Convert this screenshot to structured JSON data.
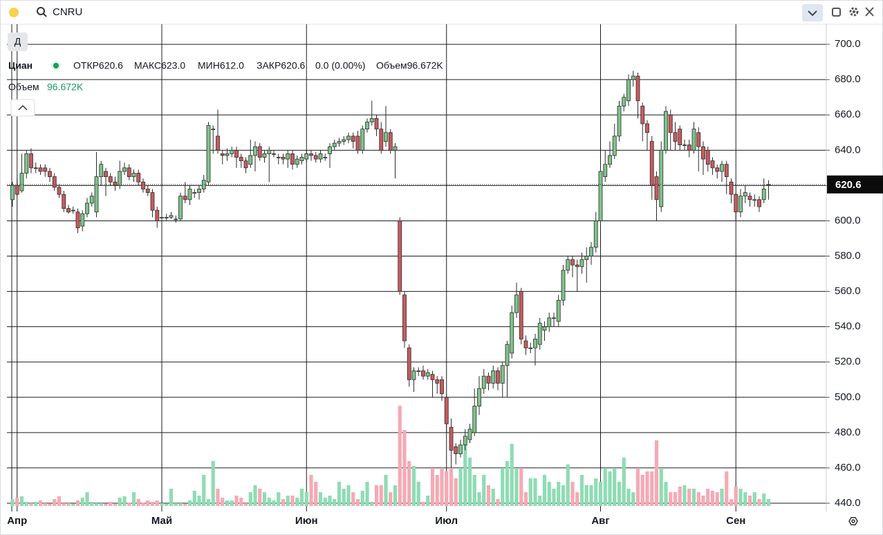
{
  "toolbar": {
    "symbol": "CNRU",
    "interval": "Д"
  },
  "legend": {
    "name": "Циан",
    "items": [
      "ОТКР620.6",
      "МАКС623.0",
      "МИН612.0",
      "ЗАКР620.6",
      "0.0 (0.00%)",
      "Объем96.672K"
    ]
  },
  "volume_legend": {
    "label": "Объем",
    "value": "96.672K"
  },
  "chart_data": {
    "type": "candlestick",
    "categories": [
      null,
      "Апр",
      null,
      null,
      null,
      null,
      null,
      null,
      null,
      null,
      null,
      null,
      null,
      null,
      null,
      null,
      null,
      null,
      null,
      null,
      null,
      null,
      null,
      null,
      null,
      null,
      null,
      null,
      null,
      null,
      null,
      null,
      "Май",
      null,
      null,
      null,
      null,
      null,
      null,
      null,
      null,
      null,
      null,
      null,
      null,
      null,
      null,
      null,
      null,
      null,
      null,
      null,
      null,
      null,
      null,
      null,
      null,
      null,
      null,
      null,
      null,
      null,
      null,
      "Июн",
      null,
      null,
      null,
      null,
      null,
      null,
      null,
      null,
      null,
      null,
      null,
      null,
      null,
      null,
      null,
      null,
      null,
      null,
      null,
      null,
      null,
      null,
      null,
      null,
      null,
      null,
      null,
      null,
      null,
      "Июл",
      null,
      null,
      null,
      null,
      null,
      null,
      null,
      null,
      null,
      null,
      null,
      null,
      null,
      null,
      null,
      null,
      null,
      null,
      null,
      null,
      null,
      null,
      null,
      null,
      null,
      null,
      null,
      null,
      null,
      null,
      null,
      null,
      "Авг",
      null,
      null,
      null,
      null,
      null,
      null,
      null,
      null,
      null,
      null,
      null,
      null,
      null,
      null,
      null,
      null,
      null,
      null,
      null,
      null,
      null,
      null,
      null,
      null,
      null,
      null,
      null,
      null,
      "Сен",
      null,
      null,
      null,
      null,
      null,
      null,
      null
    ],
    "open": [
      612,
      620,
      617,
      627,
      638,
      630,
      630,
      630,
      628,
      625,
      619,
      615,
      607,
      606,
      605,
      597,
      604,
      610,
      605,
      625,
      628,
      625,
      622,
      620,
      628,
      630,
      625,
      627,
      622,
      618,
      616,
      606,
      602,
      602,
      602,
      601,
      601,
      614,
      612,
      616,
      616,
      618,
      622,
      652,
      648,
      638,
      637,
      638,
      640,
      636,
      634,
      632,
      637,
      642,
      636,
      638,
      638,
      636,
      636,
      635,
      638,
      632,
      634,
      635,
      638,
      637,
      635,
      636,
      638,
      642,
      644,
      645,
      646,
      648,
      648,
      640,
      652,
      656,
      658,
      652,
      645,
      650,
      640,
      600,
      558,
      528,
      510,
      515,
      515,
      512,
      513,
      510,
      510,
      500,
      483,
      472,
      468,
      473,
      476,
      480,
      495,
      505,
      512,
      508,
      515,
      508,
      518,
      525,
      548,
      560,
      532,
      528,
      528,
      530,
      538,
      540,
      545,
      543,
      555,
      572,
      578,
      575,
      574,
      578,
      580,
      585,
      600,
      625,
      632,
      637,
      648,
      665,
      668,
      680,
      682,
      665,
      655,
      645,
      625,
      608,
      640,
      660,
      650,
      652,
      643,
      643,
      640,
      650,
      642,
      640,
      634,
      630,
      628,
      632,
      622,
      615,
      605,
      614,
      614,
      612,
      612,
      612,
      620.6
    ],
    "high": [
      622,
      624,
      638,
      640,
      641,
      633,
      632,
      632,
      630,
      627,
      621,
      617,
      609,
      608,
      607,
      606,
      613,
      616,
      639,
      634,
      630,
      627,
      625,
      634,
      633,
      632,
      629,
      629,
      624,
      620,
      618,
      608,
      604,
      604,
      605,
      603,
      616,
      622,
      620,
      618,
      620,
      626,
      656,
      654,
      663,
      640,
      641,
      642,
      642,
      638,
      636,
      646,
      645,
      644,
      640,
      642,
      640,
      638,
      638,
      640,
      640,
      637,
      638,
      640,
      640,
      639,
      640,
      638,
      644,
      646,
      647,
      648,
      650,
      650,
      651,
      654,
      658,
      668,
      660,
      656,
      665,
      652,
      644,
      602,
      560,
      530,
      517,
      517,
      518,
      516,
      515,
      512,
      512,
      502,
      488,
      474,
      476,
      482,
      485,
      505,
      512,
      516,
      514,
      518,
      517,
      520,
      532,
      552,
      565,
      562,
      535,
      531,
      536,
      545,
      543,
      548,
      548,
      558,
      575,
      580,
      580,
      578,
      582,
      585,
      588,
      605,
      630,
      640,
      645,
      655,
      668,
      672,
      683,
      685,
      684,
      667,
      657,
      648,
      628,
      645,
      665,
      663,
      656,
      654,
      646,
      646,
      656,
      653,
      645,
      642,
      636,
      632,
      634,
      634,
      624,
      616,
      618,
      620,
      616,
      615,
      614,
      624,
      623
    ],
    "low": [
      608,
      614,
      616,
      624,
      627,
      627,
      626,
      625,
      622,
      617,
      613,
      605,
      604,
      604,
      593,
      594,
      602,
      608,
      602,
      620,
      614,
      620,
      617,
      618,
      626,
      623,
      622,
      620,
      616,
      614,
      602,
      596,
      600,
      600,
      601,
      599,
      600,
      610,
      609,
      613,
      612,
      616,
      620,
      638,
      638,
      632,
      634,
      636,
      630,
      630,
      627,
      630,
      628,
      634,
      633,
      622,
      636,
      632,
      632,
      630,
      629,
      630,
      632,
      633,
      634,
      633,
      633,
      634,
      630,
      640,
      642,
      643,
      644,
      641,
      638,
      638,
      650,
      654,
      648,
      638,
      642,
      638,
      624,
      558,
      528,
      506,
      503,
      512,
      510,
      510,
      500,
      502,
      498,
      480,
      460,
      462,
      466,
      470,
      474,
      478,
      490,
      502,
      504,
      505,
      504,
      500,
      500,
      522,
      545,
      530,
      524,
      525,
      518,
      527,
      532,
      537,
      540,
      540,
      552,
      570,
      568,
      560,
      570,
      565,
      575,
      582,
      598,
      622,
      630,
      635,
      645,
      662,
      665,
      676,
      658,
      645,
      640,
      612,
      600,
      605,
      638,
      640,
      640,
      640,
      640,
      636,
      638,
      628,
      626,
      628,
      626,
      624,
      622,
      615,
      610,
      600,
      602,
      610,
      608,
      608,
      605,
      610,
      612
    ],
    "close": [
      620,
      615,
      627,
      638,
      630,
      630,
      628,
      628,
      625,
      619,
      615,
      607,
      605,
      606,
      596,
      604,
      610,
      614,
      625,
      632,
      625,
      622,
      620,
      628,
      630,
      625,
      627,
      622,
      618,
      616,
      606,
      600,
      602,
      602,
      603,
      601,
      614,
      612,
      618,
      616,
      618,
      623,
      654,
      652,
      640,
      637,
      638,
      640,
      636,
      634,
      630,
      637,
      642,
      636,
      638,
      640,
      638,
      636,
      635,
      638,
      632,
      635,
      636,
      638,
      637,
      635,
      638,
      636,
      642,
      644,
      645,
      646,
      648,
      645,
      640,
      652,
      656,
      658,
      652,
      640,
      650,
      640,
      642,
      560,
      532,
      510,
      515,
      515,
      512,
      514,
      510,
      508,
      502,
      485,
      470,
      468,
      473,
      478,
      482,
      495,
      505,
      512,
      508,
      515,
      508,
      518,
      530,
      548,
      558,
      533,
      528,
      528,
      533,
      542,
      540,
      545,
      545,
      555,
      572,
      578,
      575,
      574,
      578,
      580,
      585,
      600,
      628,
      632,
      637,
      648,
      665,
      670,
      680,
      682,
      668,
      655,
      650,
      620,
      612,
      640,
      662,
      650,
      645,
      643,
      643,
      640,
      652,
      642,
      635,
      632,
      630,
      628,
      632,
      625,
      615,
      605,
      614,
      616,
      612,
      612,
      608,
      618,
      620.6
    ],
    "volume": [
      10,
      12,
      14,
      6,
      4,
      6,
      8,
      4,
      3,
      10,
      14,
      4,
      4,
      3,
      8,
      12,
      20,
      6,
      4,
      4,
      3,
      6,
      3,
      12,
      14,
      5,
      20,
      10,
      5,
      8,
      6,
      8,
      4,
      3,
      25,
      4,
      4,
      3,
      8,
      22,
      15,
      45,
      10,
      65,
      25,
      12,
      8,
      8,
      15,
      12,
      4,
      20,
      30,
      25,
      20,
      12,
      8,
      20,
      10,
      15,
      15,
      12,
      25,
      20,
      45,
      35,
      20,
      12,
      15,
      10,
      35,
      25,
      30,
      20,
      10,
      22,
      35,
      6,
      30,
      30,
      45,
      20,
      30,
      145,
      110,
      65,
      58,
      35,
      6,
      15,
      55,
      45,
      55,
      50,
      55,
      40,
      55,
      100,
      70,
      45,
      20,
      45,
      30,
      25,
      10,
      55,
      65,
      90,
      55,
      55,
      20,
      40,
      40,
      15,
      45,
      35,
      25,
      35,
      30,
      60,
      35,
      20,
      45,
      30,
      30,
      40,
      35,
      55,
      50,
      55,
      35,
      70,
      25,
      20,
      55,
      45,
      50,
      50,
      95,
      55,
      35,
      20,
      20,
      28,
      30,
      25,
      25,
      20,
      15,
      25,
      22,
      20,
      25,
      50,
      10,
      28,
      25,
      20,
      15,
      20,
      10,
      18,
      10
    ],
    "up_color": "#7ec48a",
    "down_color": "#c85a5e",
    "volume_up_color": "#8fdcb4",
    "volume_down_color": "#f5aab5",
    "ylim": [
      435.3,
      711.4
    ],
    "yticks": [
      {
        "value": 440,
        "label": "440.0"
      },
      {
        "value": 460,
        "label": "460.0"
      },
      {
        "value": 480,
        "label": "480.0"
      },
      {
        "value": 500,
        "label": "500.0"
      },
      {
        "value": 520,
        "label": "520.0"
      },
      {
        "value": 540,
        "label": "540.0"
      },
      {
        "value": 560,
        "label": "560.0"
      },
      {
        "value": 580,
        "label": "580.0"
      },
      {
        "value": 600,
        "label": "600.0"
      },
      {
        "value": 620,
        "label": "620.0"
      },
      {
        "value": 640,
        "label": "640.0"
      },
      {
        "value": 660,
        "label": "660.0"
      },
      {
        "value": 680,
        "label": "680.0"
      },
      {
        "value": 700,
        "label": "700.0"
      }
    ],
    "last_price": 620.6,
    "grid": true
  }
}
